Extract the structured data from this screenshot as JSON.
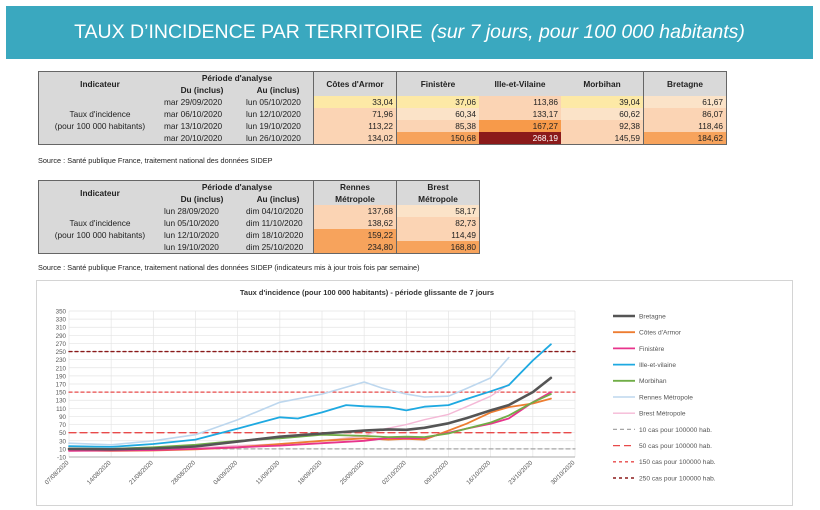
{
  "banner": {
    "title": "TAUX D’INCIDENCE PAR TERRITOIRE",
    "subtitle": "(sur 7 jours, pour 100 000 habitants)"
  },
  "table1": {
    "col_indicator": "Indicateur",
    "col_period": "Période d'analyse",
    "col_from": "Du (inclus)",
    "col_to": "Au (inclus)",
    "row_label_1": "Taux d'incidence",
    "row_label_2": "(pour 100 000 habitants)",
    "territories": [
      "Côtes d'Armor",
      "Finistère",
      "Ille-et-Vilaine",
      "Morbihan",
      "Bretagne"
    ],
    "rows": [
      {
        "from": "mar 29/09/2020",
        "to": "lun 05/10/2020",
        "values": [
          "33,04",
          "37,06",
          "113,86",
          "39,04",
          "61,67"
        ],
        "colors": [
          "#fde9a6",
          "#fde9a6",
          "#fbd4b4",
          "#fde9a6",
          "#fbe3c8"
        ]
      },
      {
        "from": "mar 06/10/2020",
        "to": "lun 12/10/2020",
        "values": [
          "71,96",
          "60,34",
          "133,17",
          "60,62",
          "86,07"
        ],
        "colors": [
          "#fbd4b4",
          "#fbe3c8",
          "#fbd4b4",
          "#fbe3c8",
          "#fbd4b4"
        ]
      },
      {
        "from": "mar 13/10/2020",
        "to": "lun 19/10/2020",
        "values": [
          "113,22",
          "85,38",
          "167,27",
          "92,38",
          "118,46"
        ],
        "colors": [
          "#fbd4b4",
          "#fbd4b4",
          "#f79a4a",
          "#fbd4b4",
          "#fbd4b4"
        ]
      },
      {
        "from": "mar 20/10/2020",
        "to": "lun 26/10/2020",
        "values": [
          "134,02",
          "150,68",
          "268,19",
          "145,59",
          "184,62"
        ],
        "colors": [
          "#fbd4b4",
          "#f7a35c",
          "#8b1a1a",
          "#fbd4b4",
          "#f7a35c"
        ]
      }
    ],
    "source": "Source  : Santé publique France, traitement national des données SIDEP"
  },
  "table2": {
    "col_indicator": "Indicateur",
    "col_period": "Période d'analyse",
    "col_from": "Du (inclus)",
    "col_to": "Au (inclus)",
    "row_label_1": "Taux d'incidence",
    "row_label_2": "(pour 100 000 habitants)",
    "territory_1": [
      "Rennes",
      "Métropole"
    ],
    "territory_2": [
      "Brest",
      "Métropole"
    ],
    "rows": [
      {
        "from": "lun 28/09/2020",
        "to": "dim 04/10/2020",
        "values": [
          "137,68",
          "58,17"
        ],
        "colors": [
          "#fbd4b4",
          "#fbe3c8"
        ]
      },
      {
        "from": "lun 05/10/2020",
        "to": "dim 11/10/2020",
        "values": [
          "138,62",
          "82,73"
        ],
        "colors": [
          "#fbd4b4",
          "#fbd4b4"
        ]
      },
      {
        "from": "lun 12/10/2020",
        "to": "dim 18/10/2020",
        "values": [
          "159,22",
          "114,49"
        ],
        "colors": [
          "#f7a35c",
          "#fbd4b4"
        ]
      },
      {
        "from": "lun 19/10/2020",
        "to": "dim 25/10/2020",
        "values": [
          "234,80",
          "168,80"
        ],
        "colors": [
          "#f7a35c",
          "#f7a35c"
        ]
      }
    ],
    "source": "Source  : Santé publique France, traitement national des données SIDEP (indicateurs mis à jour trois fois par semaine)"
  },
  "chart_data": {
    "type": "line",
    "title": "Taux d'incidence (pour 100 000 habitants) - période glissante de 7 jours",
    "xlabel": "",
    "ylabel": "",
    "ylim": [
      -10,
      350
    ],
    "yticks": [
      -10,
      10,
      30,
      50,
      70,
      90,
      110,
      130,
      150,
      170,
      190,
      210,
      230,
      250,
      270,
      290,
      310,
      330,
      350
    ],
    "x_start": "07/08/2020",
    "x_end": "30/10/2020",
    "x_tick_labels": [
      "07/08/2020",
      "14/08/2020",
      "21/08/2020",
      "28/08/2020",
      "04/09/2020",
      "11/09/2020",
      "18/09/2020",
      "25/09/2020",
      "02/10/2020",
      "09/10/2020",
      "16/10/2020",
      "23/10/2020",
      "30/10/2020"
    ],
    "grid": true,
    "legend_position": "right",
    "series": [
      {
        "name": "Bretagne",
        "color": "#555555",
        "dash": "",
        "width": 2.6,
        "x": [
          "07/08/2020",
          "14/08/2020",
          "21/08/2020",
          "28/08/2020",
          "04/09/2020",
          "11/09/2020",
          "18/09/2020",
          "25/09/2020",
          "29/09/2020",
          "02/10/2020",
          "05/10/2020",
          "09/10/2020",
          "12/10/2020",
          "16/10/2020",
          "19/10/2020",
          "23/10/2020",
          "26/10/2020"
        ],
        "y": [
          10,
          9,
          11,
          16,
          28,
          40,
          48,
          55,
          58,
          57,
          62,
          73,
          86,
          105,
          118,
          150,
          185
        ]
      },
      {
        "name": "Côtes d'Armor",
        "color": "#ed7d31",
        "dash": "",
        "width": 1.8,
        "x": [
          "07/08/2020",
          "14/08/2020",
          "21/08/2020",
          "28/08/2020",
          "04/09/2020",
          "11/09/2020",
          "18/09/2020",
          "25/09/2020",
          "29/09/2020",
          "02/10/2020",
          "05/10/2020",
          "09/10/2020",
          "12/10/2020",
          "16/10/2020",
          "19/10/2020",
          "23/10/2020",
          "26/10/2020"
        ],
        "y": [
          6,
          5,
          6,
          9,
          14,
          22,
          30,
          36,
          33,
          35,
          33,
          55,
          72,
          100,
          113,
          122,
          134
        ]
      },
      {
        "name": "Finistère",
        "color": "#e8348c",
        "dash": "",
        "width": 1.8,
        "x": [
          "07/08/2020",
          "14/08/2020",
          "21/08/2020",
          "28/08/2020",
          "04/09/2020",
          "11/09/2020",
          "18/09/2020",
          "25/09/2020",
          "29/09/2020",
          "02/10/2020",
          "05/10/2020",
          "09/10/2020",
          "12/10/2020",
          "16/10/2020",
          "19/10/2020",
          "23/10/2020",
          "26/10/2020"
        ],
        "y": [
          5,
          6,
          7,
          10,
          14,
          18,
          24,
          30,
          37,
          36,
          37,
          50,
          60,
          72,
          85,
          125,
          150
        ]
      },
      {
        "name": "Ille-et-vilaine",
        "color": "#1ea9e1",
        "dash": "",
        "width": 1.8,
        "x": [
          "07/08/2020",
          "14/08/2020",
          "21/08/2020",
          "28/08/2020",
          "04/09/2020",
          "11/09/2020",
          "14/09/2020",
          "18/09/2020",
          "22/09/2020",
          "25/09/2020",
          "29/09/2020",
          "02/10/2020",
          "05/10/2020",
          "09/10/2020",
          "12/10/2020",
          "16/10/2020",
          "19/10/2020",
          "23/10/2020",
          "26/10/2020"
        ],
        "y": [
          17,
          15,
          22,
          33,
          60,
          88,
          85,
          100,
          118,
          115,
          113,
          105,
          114,
          118,
          133,
          152,
          167,
          228,
          268
        ]
      },
      {
        "name": "Morbihan",
        "color": "#70ad47",
        "dash": "",
        "width": 1.8,
        "x": [
          "07/08/2020",
          "14/08/2020",
          "21/08/2020",
          "28/08/2020",
          "04/09/2020",
          "11/09/2020",
          "18/09/2020",
          "25/09/2020",
          "29/09/2020",
          "02/10/2020",
          "05/10/2020",
          "09/10/2020",
          "12/10/2020",
          "16/10/2020",
          "19/10/2020",
          "23/10/2020",
          "26/10/2020"
        ],
        "y": [
          11,
          10,
          14,
          20,
          30,
          36,
          45,
          42,
          39,
          40,
          39,
          48,
          60,
          75,
          92,
          125,
          145
        ]
      },
      {
        "name": "Rennes Métropole",
        "color": "#bdd7ee",
        "dash": "",
        "width": 1.6,
        "x": [
          "07/08/2020",
          "14/08/2020",
          "21/08/2020",
          "28/08/2020",
          "04/09/2020",
          "11/09/2020",
          "18/09/2020",
          "25/09/2020",
          "28/09/2020",
          "02/10/2020",
          "05/10/2020",
          "09/10/2020",
          "12/10/2020",
          "16/10/2020",
          "19/10/2020"
        ],
        "y": [
          24,
          20,
          30,
          45,
          82,
          125,
          145,
          175,
          160,
          145,
          138,
          140,
          159,
          185,
          235
        ]
      },
      {
        "name": "Brest Métropole",
        "color": "#f4b8d6",
        "dash": "",
        "width": 1.4,
        "x": [
          "07/08/2020",
          "14/08/2020",
          "21/08/2020",
          "28/08/2020",
          "04/09/2020",
          "11/09/2020",
          "18/09/2020",
          "25/09/2020",
          "28/09/2020",
          "02/10/2020",
          "05/10/2020",
          "09/10/2020",
          "12/10/2020",
          "16/10/2020",
          "19/10/2020"
        ],
        "y": [
          8,
          7,
          9,
          12,
          18,
          22,
          30,
          42,
          58,
          70,
          82,
          95,
          114,
          140,
          169
        ]
      },
      {
        "name": "10 cas pour 100000 hab.",
        "color": "#a6a6a6",
        "dash": "4,3",
        "width": 1.2,
        "x": [
          "07/08/2020",
          "30/10/2020"
        ],
        "y": [
          10,
          10
        ]
      },
      {
        "name": "50 cas pour 100000 hab.",
        "color": "#e84a4a",
        "dash": "7,4",
        "width": 1.3,
        "x": [
          "07/08/2020",
          "30/10/2020"
        ],
        "y": [
          50,
          50
        ]
      },
      {
        "name": "150 cas pour 100000 hab.",
        "color": "#e84a4a",
        "dash": "3,3",
        "width": 1.3,
        "x": [
          "07/08/2020",
          "30/10/2020"
        ],
        "y": [
          150,
          150
        ]
      },
      {
        "name": "250 cas pour 100000 hab.",
        "color": "#8b1a1a",
        "dash": "3,3",
        "width": 1.4,
        "x": [
          "07/08/2020",
          "30/10/2020"
        ],
        "y": [
          250,
          250
        ]
      }
    ]
  }
}
